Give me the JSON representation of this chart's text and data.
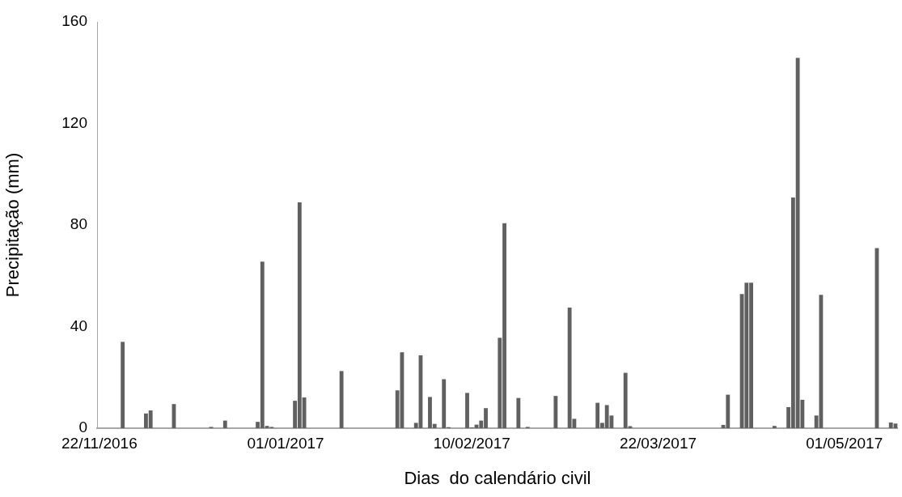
{
  "chart_data": {
    "type": "bar",
    "xlabel": "Dias  do calendário civil",
    "ylabel": "Precipitação (mm)",
    "categories": [
      "22/11/2016",
      null,
      null,
      null,
      null,
      null,
      null,
      null,
      null,
      null,
      null,
      null,
      null,
      null,
      null,
      null,
      null,
      null,
      null,
      null,
      null,
      null,
      null,
      null,
      null,
      null,
      null,
      null,
      null,
      null,
      null,
      null,
      null,
      null,
      null,
      null,
      null,
      null,
      null,
      null,
      "01/01/2017",
      null,
      null,
      null,
      null,
      null,
      null,
      null,
      null,
      null,
      null,
      null,
      null,
      null,
      null,
      null,
      null,
      null,
      null,
      null,
      null,
      null,
      null,
      null,
      null,
      null,
      null,
      null,
      null,
      null,
      null,
      null,
      null,
      null,
      null,
      null,
      null,
      null,
      null,
      null,
      "10/02/2017",
      null,
      null,
      null,
      null,
      null,
      null,
      null,
      null,
      null,
      null,
      null,
      null,
      null,
      null,
      null,
      null,
      null,
      null,
      null,
      null,
      null,
      null,
      null,
      null,
      null,
      null,
      null,
      null,
      null,
      null,
      null,
      null,
      null,
      null,
      null,
      null,
      null,
      null,
      null,
      "22/03/2017",
      null,
      null,
      null,
      null,
      null,
      null,
      null,
      null,
      null,
      null,
      null,
      null,
      null,
      null,
      null,
      null,
      null,
      null,
      null,
      null,
      null,
      null,
      null,
      null,
      null,
      null,
      null,
      null,
      null,
      null,
      null,
      null,
      null,
      null,
      null,
      null,
      null,
      null,
      null,
      "01/05/2017",
      null,
      null,
      null,
      null,
      null,
      null,
      null,
      null,
      null,
      null,
      null
    ],
    "values": [
      0,
      0,
      0,
      0,
      0,
      34,
      0,
      0,
      0,
      0,
      5.8,
      7,
      0,
      0,
      0,
      0,
      9.5,
      0,
      0,
      0,
      0,
      0,
      0,
      0,
      0.5,
      0,
      0,
      3,
      0,
      0,
      0,
      0,
      0,
      0,
      2.5,
      65.6,
      0.9,
      0.5,
      0,
      0,
      0,
      0,
      10.8,
      88.9,
      12.1,
      0,
      0,
      0,
      0,
      0,
      0,
      0,
      22.5,
      0,
      0,
      0,
      0,
      0,
      0,
      0,
      0,
      0,
      0,
      0,
      14.9,
      29.9,
      0,
      0,
      2.1,
      28.7,
      0,
      12.3,
      1.7,
      0,
      19.3,
      0.4,
      0,
      0,
      0,
      13.9,
      0.3,
      1.4,
      3,
      7.9,
      0,
      0,
      35.6,
      80.7,
      0,
      0,
      11.9,
      0,
      0.5,
      0,
      0,
      0,
      0,
      0,
      12.7,
      0,
      0,
      47.5,
      3.7,
      0,
      0,
      0,
      0,
      10,
      2.1,
      9.1,
      5,
      0,
      0,
      21.8,
      0.8,
      0,
      0,
      0,
      0,
      0,
      0,
      0,
      0,
      0,
      0,
      0,
      0,
      0,
      0,
      0,
      0,
      0,
      0,
      0,
      1.3,
      13.2,
      0,
      0,
      52.8,
      57.3,
      57.3,
      0,
      0,
      0,
      0,
      0.9,
      0,
      0,
      8.3,
      90.8,
      145.8,
      11.2,
      0,
      0,
      5,
      52.5,
      0,
      0,
      0,
      0,
      0,
      0,
      0,
      0,
      0,
      0,
      0,
      70.9,
      0,
      0,
      2.2,
      1.8
    ],
    "color": "#606060",
    "ylim": [
      0,
      160
    ],
    "yticks": [
      0,
      40,
      80,
      120,
      160
    ],
    "grid": false
  }
}
